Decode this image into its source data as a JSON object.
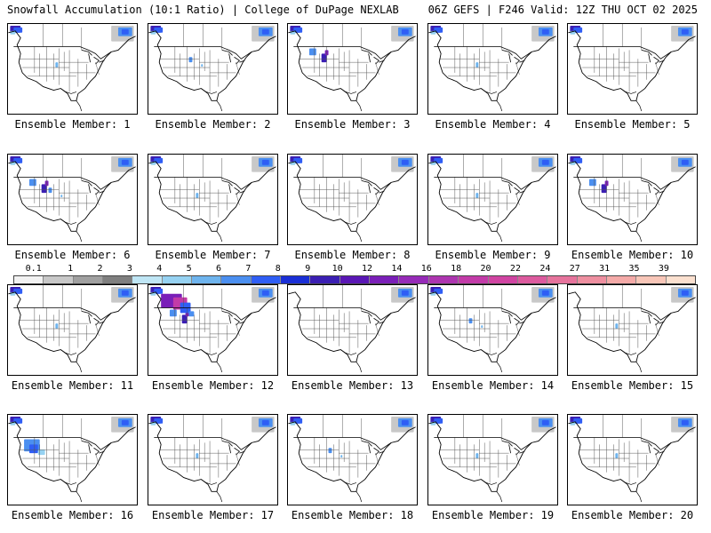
{
  "header": {
    "left_title": "Snowfall Accumulation (10:1 Ratio) | College of DuPage NEXLAB",
    "right_title": "06Z GEFS | F246 Valid: 12Z THU OCT 02 2025"
  },
  "colorbar": {
    "levels": [
      "0.1",
      "1",
      "2",
      "3",
      "4",
      "5",
      "6",
      "7",
      "8",
      "9",
      "10",
      "12",
      "14",
      "16",
      "18",
      "20",
      "22",
      "24",
      "27",
      "31",
      "35",
      "39"
    ],
    "colors": [
      "#f2f2f2",
      "#c8c8c8",
      "#a0a0a0",
      "#7f7f7f",
      "#bfe6f5",
      "#96d2f2",
      "#6eb4ee",
      "#4b8ff0",
      "#2f5ef5",
      "#1a2fd6",
      "#3b1fb3",
      "#5a17b5",
      "#7a1fb8",
      "#962bb8",
      "#ad35b0",
      "#c23ba8",
      "#d044a2",
      "#dc5a9e",
      "#e6739c",
      "#ee8fa0",
      "#f4aaa8",
      "#f8c6b8",
      "#fbe0cf"
    ]
  },
  "panels": [
    {
      "label": "Ensemble Member: 1",
      "snow": [
        "nw",
        "ne",
        "sp1"
      ]
    },
    {
      "label": "Ensemble Member: 2",
      "snow": [
        "nw",
        "ne",
        "sp2"
      ]
    },
    {
      "label": "Ensemble Member: 3",
      "snow": [
        "nw",
        "ne",
        "rk"
      ]
    },
    {
      "label": "Ensemble Member: 4",
      "snow": [
        "nw",
        "ne",
        "sp1"
      ]
    },
    {
      "label": "Ensemble Member: 5",
      "snow": [
        "nw",
        "ne"
      ]
    },
    {
      "label": "Ensemble Member: 6",
      "snow": [
        "nw",
        "ne",
        "sp2",
        "rk"
      ]
    },
    {
      "label": "Ensemble Member: 7",
      "snow": [
        "nw",
        "ne",
        "sp1"
      ]
    },
    {
      "label": "Ensemble Member: 8",
      "snow": [
        "nw",
        "ne"
      ]
    },
    {
      "label": "Ensemble Member: 9",
      "snow": [
        "nw",
        "ne",
        "sp1"
      ]
    },
    {
      "label": "Ensemble Member: 10",
      "snow": [
        "nw",
        "ne",
        "rk"
      ]
    },
    {
      "label": "Ensemble Member: 11",
      "snow": [
        "nw",
        "ne",
        "sp1"
      ]
    },
    {
      "label": "Ensemble Member: 12",
      "snow": [
        "nw",
        "ne",
        "rk",
        "mt"
      ]
    },
    {
      "label": "Ensemble Member: 13",
      "snow": [
        "ne"
      ]
    },
    {
      "label": "Ensemble Member: 14",
      "snow": [
        "nw",
        "ne",
        "sp2"
      ]
    },
    {
      "label": "Ensemble Member: 15",
      "snow": [
        "ne",
        "sp1"
      ]
    },
    {
      "label": "Ensemble Member: 16",
      "snow": [
        "nw",
        "ne",
        "gb"
      ]
    },
    {
      "label": "Ensemble Member: 17",
      "snow": [
        "nw",
        "ne",
        "sp1"
      ]
    },
    {
      "label": "Ensemble Member: 18",
      "snow": [
        "nw",
        "ne",
        "sp2"
      ]
    },
    {
      "label": "Ensemble Member: 19",
      "snow": [
        "nw",
        "ne",
        "sp1"
      ]
    },
    {
      "label": "Ensemble Member: 20",
      "snow": [
        "nw",
        "ne",
        "sp1"
      ]
    }
  ]
}
